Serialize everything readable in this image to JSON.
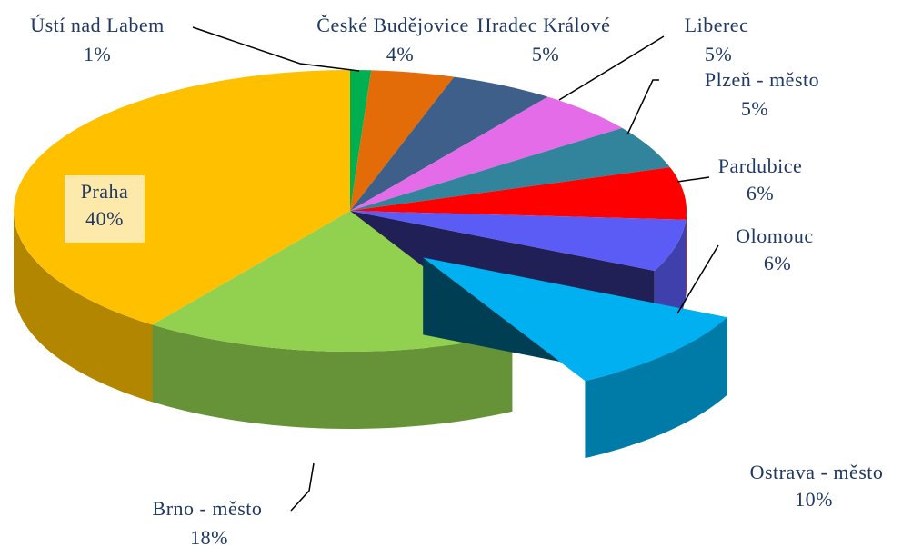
{
  "chart_data": {
    "type": "pie3d",
    "categories": [
      "Ústí nad Labem",
      "České Budějovice",
      "Hradec Králové",
      "Liberec",
      "Plzeň - město",
      "Pardubice",
      "Olomouc",
      "Ostrava - město",
      "Brno - město",
      "Praha"
    ],
    "values": [
      1,
      4,
      5,
      5,
      5,
      6,
      6,
      10,
      18,
      40
    ],
    "value_labels": [
      "1%",
      "4%",
      "5%",
      "5%",
      "5%",
      "6%",
      "6%",
      "10%",
      "18%",
      "40%"
    ],
    "colors": [
      "#00b050",
      "#e36c09",
      "#3e5f8a",
      "#e46ce8",
      "#31849b",
      "#ff0000",
      "#5b5bf5",
      "#00b0f0",
      "#92d050",
      "#ffc000"
    ],
    "exploded": [
      7
    ]
  }
}
